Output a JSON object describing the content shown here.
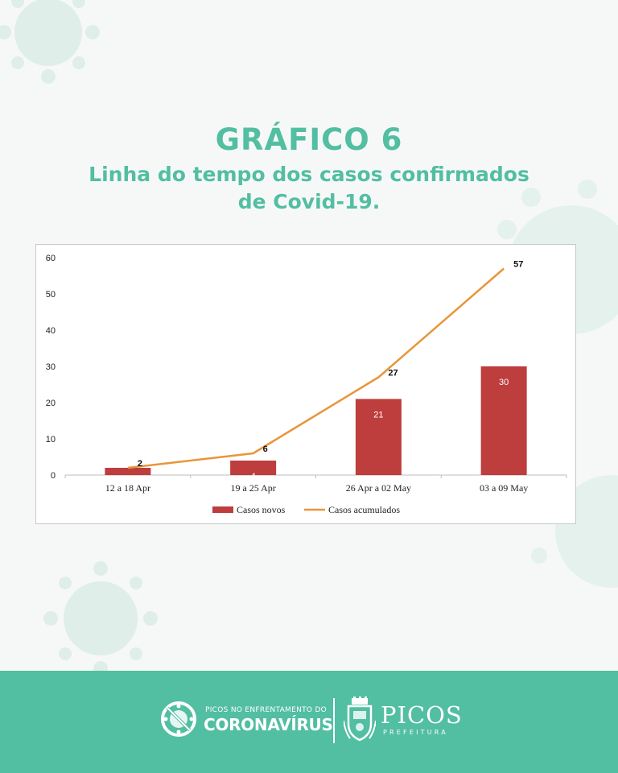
{
  "header": {
    "title": "GRÁFICO 6",
    "subtitle_line1": "Linha do tempo dos casos confirmados",
    "subtitle_line2": "de Covid-19."
  },
  "colors": {
    "accent": "#52bea2",
    "bar": "#be3d3d",
    "line": "#e8963a",
    "background": "#f6f8f7"
  },
  "chart_data": {
    "type": "bar",
    "categories": [
      "12 a 18 Apr",
      "19 a 25 Apr",
      "26 Apr a 02 May",
      "03 a 09 May"
    ],
    "series": [
      {
        "name": "Casos novos",
        "type": "bar",
        "values": [
          2,
          4,
          21,
          30
        ],
        "labels": [
          "",
          "4",
          "21",
          "30"
        ]
      },
      {
        "name": "Casos acumulados",
        "type": "line",
        "values": [
          2,
          6,
          27,
          57
        ],
        "labels": [
          "2",
          "6",
          "27",
          "57"
        ]
      }
    ],
    "ylim": [
      0,
      60
    ],
    "yticks": [
      0,
      10,
      20,
      30,
      40,
      50,
      60
    ],
    "grid": false,
    "legend": "bottom"
  },
  "footer": {
    "brand_top": "PICOS NO ENFRENTAMENTO DO",
    "brand_main": "CORONAVÍRUS",
    "city": "PICOS",
    "city_sub": "PREFEITURA",
    "icons": [
      "virus-prohibited-icon",
      "city-crest-icon"
    ]
  }
}
